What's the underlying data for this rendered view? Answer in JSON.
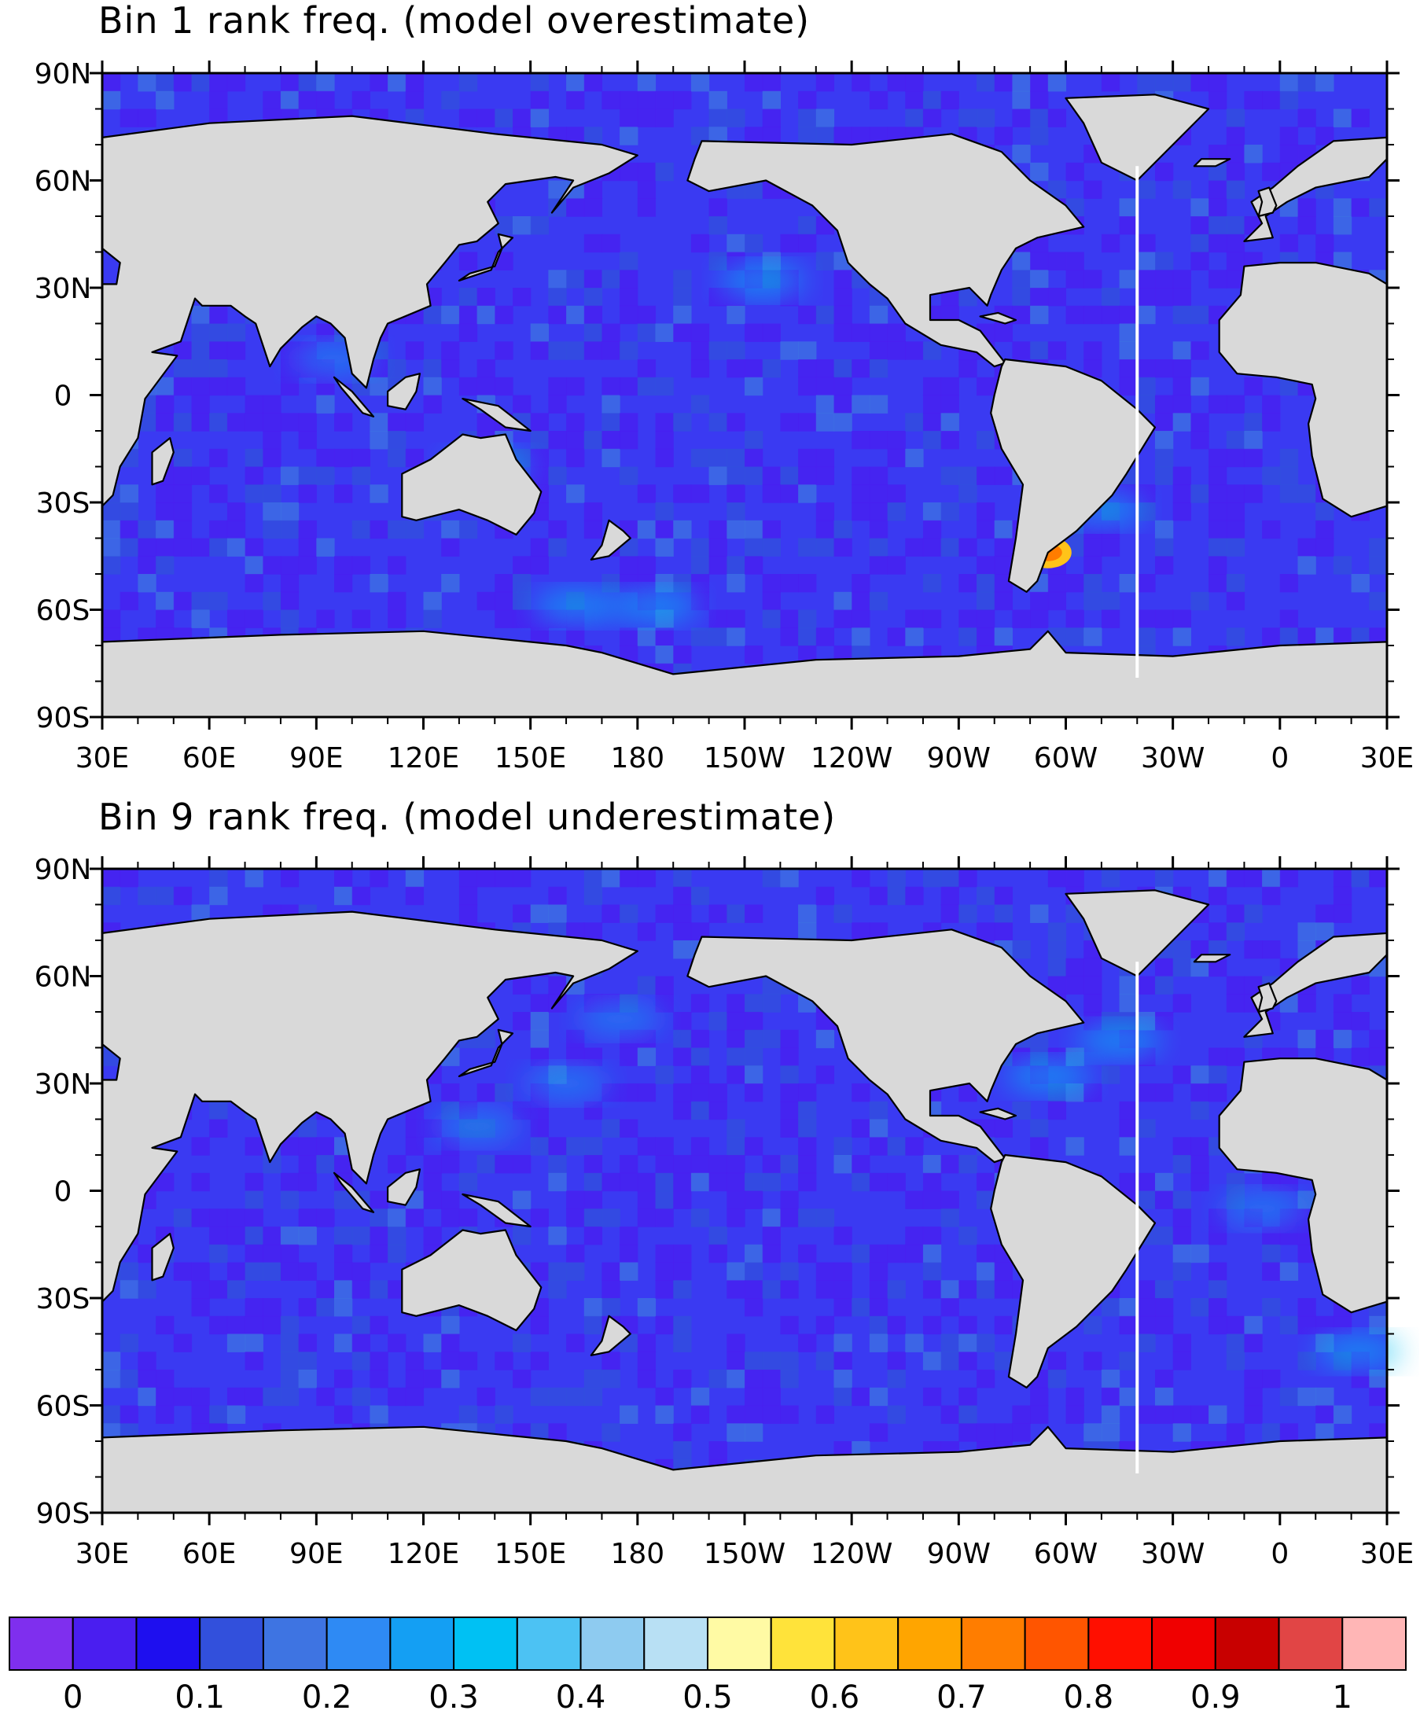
{
  "chart_data": [
    {
      "type": "heatmap",
      "title": "Bin 1 rank freq. (model overestimate)",
      "x_tick_labels": [
        "30E",
        "60E",
        "90E",
        "120E",
        "150E",
        "180",
        "150W",
        "120W",
        "90W",
        "60W",
        "30W",
        "0",
        "30E"
      ],
      "y_tick_labels": [
        "90N",
        "60N",
        "30N",
        "0",
        "30S",
        "60S",
        "90S"
      ],
      "xlim": [
        30,
        390
      ],
      "ylim": [
        -90,
        90
      ],
      "field_background_color": "#3a3af2",
      "features": [
        {
          "lon": 215,
          "lat": 32,
          "value": 0.3
        },
        {
          "lon": 295,
          "lat": -44,
          "value": 0.7
        },
        {
          "lon": 310,
          "lat": -32,
          "value": 0.3
        },
        {
          "lon": 163,
          "lat": -59,
          "value": 0.3
        },
        {
          "lon": 185,
          "lat": -59,
          "value": 0.3
        },
        {
          "lon": 95,
          "lat": 10,
          "value": 0.25
        },
        {
          "lon": 138,
          "lat": -20,
          "value": 0.3
        }
      ]
    },
    {
      "type": "heatmap",
      "title": "Bin 9 rank freq. (model underestimate)",
      "x_tick_labels": [
        "30E",
        "60E",
        "90E",
        "120E",
        "150E",
        "180",
        "150W",
        "120W",
        "90W",
        "60W",
        "30W",
        "0",
        "30E"
      ],
      "y_tick_labels": [
        "90N",
        "60N",
        "30N",
        "0",
        "30S",
        "60S",
        "90S"
      ],
      "xlim": [
        30,
        390
      ],
      "ylim": [
        -90,
        90
      ],
      "field_background_color": "#3a3af2",
      "features": [
        {
          "lon": 315,
          "lat": 42,
          "value": 0.3
        },
        {
          "lon": 295,
          "lat": 32,
          "value": 0.3
        },
        {
          "lon": 160,
          "lat": 30,
          "value": 0.25
        },
        {
          "lon": 135,
          "lat": 18,
          "value": 0.25
        },
        {
          "lon": 382,
          "lat": -45,
          "value": 0.3
        },
        {
          "lon": 355,
          "lat": -5,
          "value": 0.25
        },
        {
          "lon": 175,
          "lat": 48,
          "value": 0.25
        }
      ]
    }
  ],
  "colorbar": {
    "colors": [
      "#7f2fee",
      "#4a1ef0",
      "#1e0fef",
      "#3250dc",
      "#3e74e2",
      "#2e8af4",
      "#149ff3",
      "#00c1f3",
      "#4cc2f3",
      "#8ecbf0",
      "#b8e0f4",
      "#fffaa4",
      "#ffe33a",
      "#ffc319",
      "#ffa500",
      "#ff7d00",
      "#ff5500",
      "#ff0f00",
      "#f00000",
      "#c80000",
      "#e14545",
      "#ffb6b6"
    ],
    "labels": [
      "0",
      "0.1",
      "0.2",
      "0.3",
      "0.4",
      "0.5",
      "0.6",
      "0.7",
      "0.8",
      "0.9",
      "1"
    ]
  },
  "colors": {
    "land": "#d9d9d9",
    "ocean_default": "#3a3af2",
    "missing_line": "#ffffff"
  }
}
